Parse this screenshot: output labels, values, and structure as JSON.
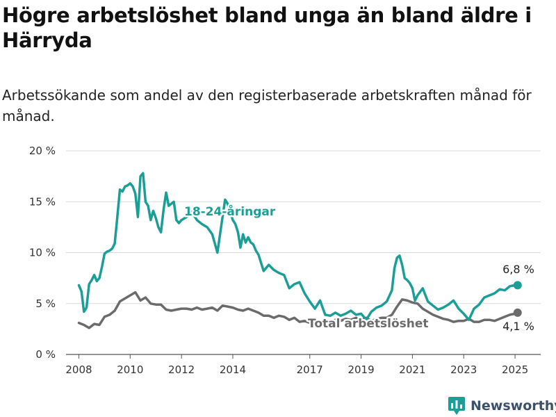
{
  "page": {
    "title": "Högre arbetslöshet bland unga än bland äldre i Härryda",
    "subtitle": "Arbetssökande som andel av den registerbaserade arbetskraften månad för månad."
  },
  "brand": {
    "name": "Newsworthy",
    "icon": "bar-chart-icon",
    "color": "#1a9e95"
  },
  "chart_data": {
    "type": "line",
    "title": "Högre arbetslöshet bland unga än bland äldre i Härryda",
    "subtitle": "Arbetssökande som andel av den registerbaserade arbetskraften månad för månad.",
    "xlabel": "",
    "ylabel": "",
    "x_ticks": [
      "2008",
      "2010",
      "2012",
      "2014",
      "2017",
      "2019",
      "2021",
      "2023",
      "2025"
    ],
    "x_tick_values": [
      2008,
      2010,
      2012,
      2014,
      2017,
      2019,
      2021,
      2023,
      2025
    ],
    "y_ticks": [
      "0 %",
      "5 %",
      "10 %",
      "15 %",
      "20 %"
    ],
    "y_tick_values": [
      0,
      5,
      10,
      15,
      20
    ],
    "ylim": [
      0,
      20
    ],
    "xlim": [
      2007.5,
      2026
    ],
    "grid": true,
    "legend": "inline labels",
    "series": [
      {
        "name": "18-24-åringar",
        "color": "#1a9e95",
        "end_label": "6,8 %",
        "x": [
          2008.0,
          2008.1,
          2008.2,
          2008.3,
          2008.4,
          2008.5,
          2008.6,
          2008.7,
          2008.8,
          2008.9,
          2009.0,
          2009.1,
          2009.2,
          2009.3,
          2009.4,
          2009.5,
          2009.6,
          2009.7,
          2009.8,
          2009.9,
          2010.0,
          2010.1,
          2010.2,
          2010.3,
          2010.4,
          2010.5,
          2010.6,
          2010.7,
          2010.8,
          2010.9,
          2011.0,
          2011.1,
          2011.2,
          2011.3,
          2011.4,
          2011.5,
          2011.6,
          2011.7,
          2011.8,
          2011.9,
          2012.0,
          2012.2,
          2012.4,
          2012.6,
          2012.8,
          2013.0,
          2013.2,
          2013.4,
          2013.6,
          2013.7,
          2013.8,
          2014.0,
          2014.1,
          2014.2,
          2014.3,
          2014.4,
          2014.5,
          2014.6,
          2014.7,
          2014.8,
          2014.9,
          2015.0,
          2015.2,
          2015.4,
          2015.6,
          2015.8,
          2016.0,
          2016.2,
          2016.4,
          2016.6,
          2016.8,
          2017.0,
          2017.2,
          2017.4,
          2017.6,
          2017.8,
          2018.0,
          2018.2,
          2018.4,
          2018.6,
          2018.8,
          2019.0,
          2019.2,
          2019.4,
          2019.6,
          2019.8,
          2020.0,
          2020.2,
          2020.3,
          2020.4,
          2020.5,
          2020.6,
          2020.7,
          2020.8,
          2020.9,
          2021.0,
          2021.1,
          2021.2,
          2021.4,
          2021.6,
          2021.8,
          2022.0,
          2022.2,
          2022.4,
          2022.6,
          2022.8,
          2023.0,
          2023.2,
          2023.4,
          2023.6,
          2023.8,
          2024.0,
          2024.2,
          2024.4,
          2024.6,
          2024.8,
          2025.0,
          2025.1
        ],
        "values": [
          6.8,
          6.2,
          4.2,
          4.6,
          6.9,
          7.3,
          7.8,
          7.2,
          7.5,
          8.6,
          9.9,
          10.1,
          10.2,
          10.4,
          10.9,
          13.5,
          16.2,
          16.0,
          16.5,
          16.6,
          16.8,
          16.5,
          15.8,
          13.5,
          17.5,
          17.8,
          15.0,
          14.6,
          13.2,
          14.1,
          13.4,
          12.5,
          12.0,
          14.2,
          15.9,
          14.6,
          14.8,
          15.0,
          13.2,
          12.9,
          13.2,
          13.5,
          14.0,
          13.2,
          12.8,
          12.5,
          11.8,
          10.0,
          13.5,
          15.2,
          14.8,
          13.2,
          12.8,
          12.0,
          10.5,
          11.8,
          11.0,
          11.5,
          11.0,
          10.8,
          10.2,
          9.8,
          8.2,
          8.8,
          8.3,
          8.0,
          7.8,
          6.5,
          6.9,
          7.1,
          6.0,
          5.2,
          4.5,
          5.3,
          3.9,
          3.8,
          4.1,
          3.8,
          4.0,
          4.3,
          3.9,
          4.0,
          3.4,
          4.2,
          4.6,
          4.8,
          5.2,
          6.3,
          8.5,
          9.5,
          9.7,
          8.8,
          7.5,
          7.3,
          7.0,
          6.5,
          5.3,
          5.8,
          6.5,
          5.2,
          4.8,
          4.4,
          4.6,
          4.9,
          5.3,
          4.5,
          4.0,
          3.4,
          4.5,
          4.9,
          5.6,
          5.8,
          6.0,
          6.4,
          6.3,
          6.7,
          6.8,
          6.8
        ]
      },
      {
        "name": "Total arbetslöshet",
        "color": "#6b6b6b",
        "end_label": "4,1 %",
        "x": [
          2008.0,
          2008.2,
          2008.4,
          2008.6,
          2008.8,
          2009.0,
          2009.2,
          2009.4,
          2009.6,
          2009.8,
          2010.0,
          2010.2,
          2010.4,
          2010.6,
          2010.8,
          2011.0,
          2011.2,
          2011.4,
          2011.6,
          2011.8,
          2012.0,
          2012.2,
          2012.4,
          2012.6,
          2012.8,
          2013.0,
          2013.2,
          2013.4,
          2013.6,
          2013.8,
          2014.0,
          2014.2,
          2014.4,
          2014.6,
          2014.8,
          2015.0,
          2015.2,
          2015.4,
          2015.6,
          2015.8,
          2016.0,
          2016.2,
          2016.4,
          2016.6,
          2016.8,
          2017.0,
          2017.2,
          2017.4,
          2017.6,
          2017.8,
          2018.0,
          2018.2,
          2018.4,
          2018.6,
          2018.8,
          2019.0,
          2019.2,
          2019.4,
          2019.6,
          2019.8,
          2020.0,
          2020.2,
          2020.4,
          2020.6,
          2020.8,
          2021.0,
          2021.2,
          2021.4,
          2021.6,
          2021.8,
          2022.0,
          2022.2,
          2022.4,
          2022.6,
          2022.8,
          2023.0,
          2023.2,
          2023.4,
          2023.6,
          2023.8,
          2024.0,
          2024.2,
          2024.4,
          2024.6,
          2024.8,
          2025.0,
          2025.1
        ],
        "values": [
          3.1,
          2.9,
          2.6,
          3.0,
          2.9,
          3.7,
          3.9,
          4.3,
          5.2,
          5.5,
          5.8,
          6.1,
          5.3,
          5.6,
          5.0,
          4.9,
          4.9,
          4.4,
          4.3,
          4.4,
          4.5,
          4.5,
          4.4,
          4.6,
          4.4,
          4.5,
          4.6,
          4.3,
          4.8,
          4.7,
          4.6,
          4.4,
          4.3,
          4.5,
          4.3,
          4.1,
          3.8,
          3.8,
          3.6,
          3.8,
          3.7,
          3.4,
          3.6,
          3.2,
          3.3,
          3.1,
          3.3,
          3.3,
          3.2,
          3.2,
          3.4,
          3.3,
          3.5,
          3.4,
          3.6,
          3.4,
          3.6,
          3.3,
          3.5,
          3.6,
          3.6,
          3.9,
          4.7,
          5.4,
          5.3,
          5.1,
          5.0,
          4.5,
          4.2,
          3.9,
          3.7,
          3.5,
          3.4,
          3.2,
          3.3,
          3.3,
          3.5,
          3.2,
          3.2,
          3.4,
          3.4,
          3.3,
          3.5,
          3.7,
          3.9,
          4.0,
          4.1
        ]
      }
    ]
  }
}
